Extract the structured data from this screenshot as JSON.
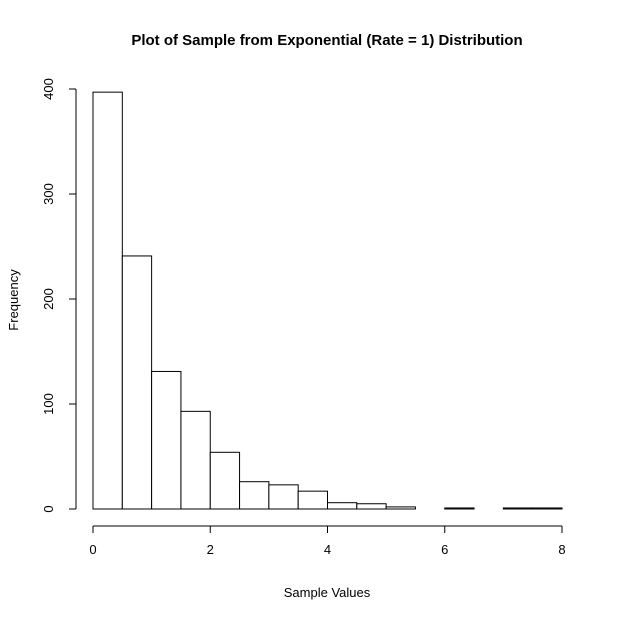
{
  "chart_data": {
    "type": "bar",
    "title": "Plot of Sample from Exponential (Rate = 1) Distribution",
    "xlabel": "Sample Values",
    "ylabel": "Frequency",
    "bin_edges": [
      0,
      0.5,
      1,
      1.5,
      2,
      2.5,
      3,
      3.5,
      4,
      4.5,
      5,
      5.5,
      6,
      6.5,
      7,
      7.5,
      8
    ],
    "values": [
      397,
      241,
      131,
      93,
      54,
      26,
      23,
      17,
      6,
      5,
      2,
      0,
      1,
      0,
      1,
      1
    ],
    "xlim": [
      0,
      8
    ],
    "ylim": [
      0,
      400
    ],
    "x_ticks": [
      "0",
      "2",
      "4",
      "6",
      "8"
    ],
    "y_ticks": [
      "0",
      "100",
      "200",
      "300",
      "400"
    ],
    "grid": false,
    "bar_fill": "#ffffff",
    "bar_stroke": "#000000"
  }
}
